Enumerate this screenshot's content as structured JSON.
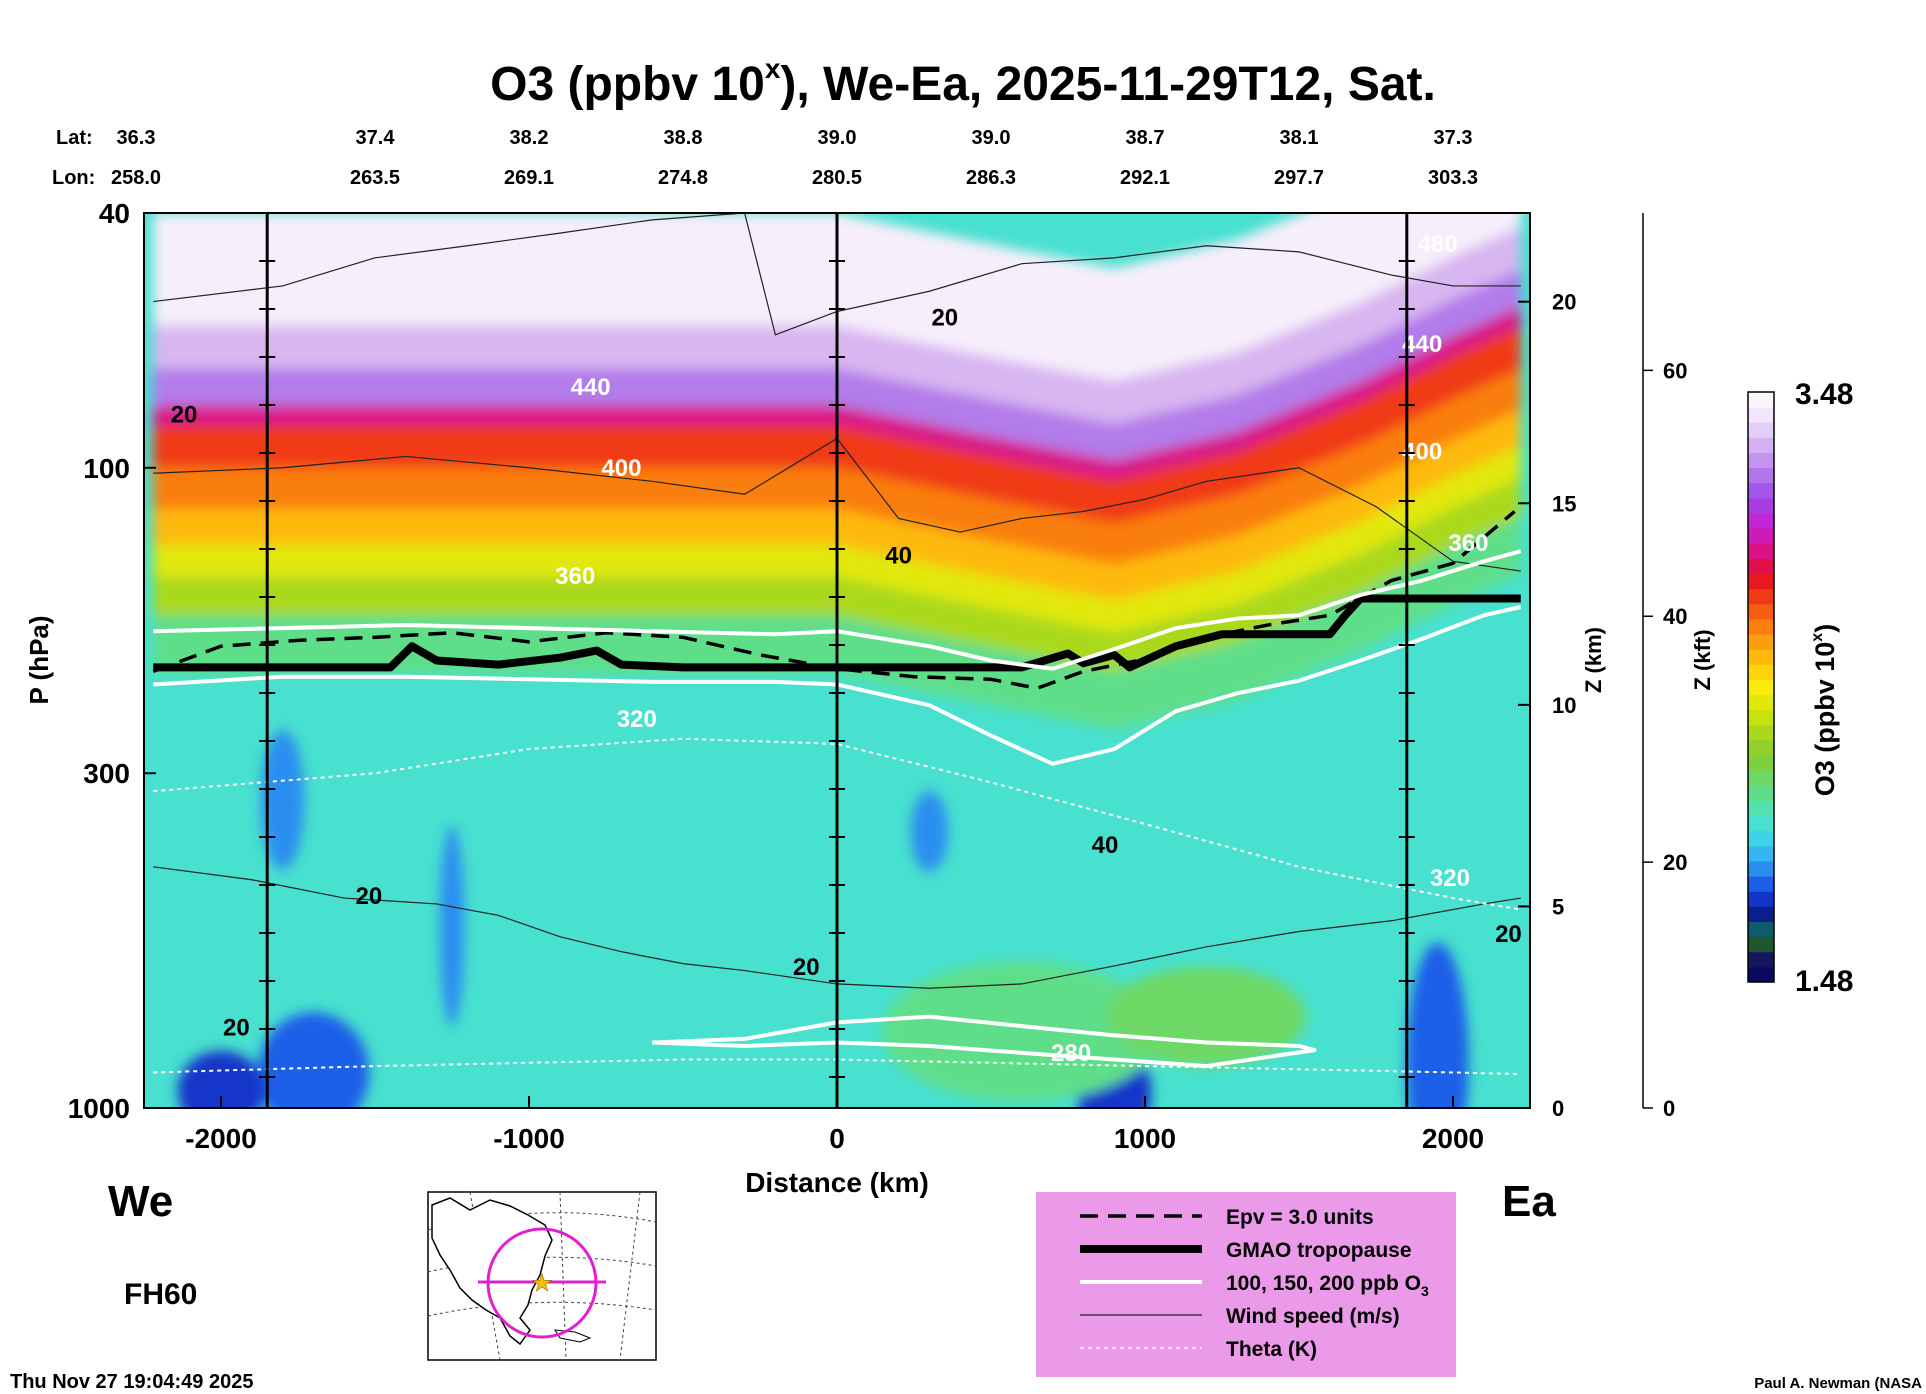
{
  "chart_data": {
    "type": "heatmap",
    "title": "O3 (ppbv 10",
    "title_sup": "x",
    "title_rest": "), We-Ea, 2025-11-29T12, Sat.",
    "xlabel": "Distance (km)",
    "ylabel": "P (hPa)",
    "z_km_label": "Z (km)",
    "z_kft_label": "Z (kft)",
    "xlim": [
      -2250,
      2250
    ],
    "ylim": [
      1000,
      40
    ],
    "x_ticks": [
      -2000,
      -1000,
      0,
      1000,
      2000
    ],
    "x_tick_labels": [
      "-2000",
      "-1000",
      "0",
      "1000",
      "2000"
    ],
    "p_ticks": [
      40,
      100,
      300,
      1000
    ],
    "p_tick_labels": [
      "40",
      "100",
      "300",
      "1000"
    ],
    "z_km_ticks": [
      0,
      5,
      10,
      15,
      20
    ],
    "z_km_tick_labels": [
      "0",
      "5",
      "10",
      "15",
      "20"
    ],
    "z_kft_ticks": [
      0,
      20,
      40,
      60
    ],
    "z_kft_tick_labels": [
      "0",
      "20",
      "40",
      "60"
    ],
    "lat_label": "Lat:",
    "lon_label": "Lon:",
    "stations_x": [
      -2000,
      -1500,
      -1000,
      -500,
      0,
      500,
      1000,
      1500,
      2000
    ],
    "lat_values": [
      "36.3",
      "37.4",
      "38.2",
      "38.8",
      "39.0",
      "39.0",
      "38.7",
      "38.1",
      "37.3"
    ],
    "lon_values": [
      "258.0",
      "263.5",
      "269.1",
      "274.8",
      "280.5",
      "286.3",
      "292.1",
      "297.7",
      "303.3"
    ],
    "vertical_lines_x": [
      -1850,
      0,
      1850
    ],
    "colorbar": {
      "label": "O3 (ppbv 10",
      "label_sup": "x",
      "label_end": ")",
      "min": 1.48,
      "max": 3.48,
      "min_label": "1.48",
      "max_label": "3.48",
      "colors": [
        "#08085e",
        "#16165a",
        "#1e5630",
        "#0c5c6c",
        "#0a1f8c",
        "#1336c9",
        "#1d5ee8",
        "#2a8ef0",
        "#35b6f2",
        "#3fd3e8",
        "#48e0cf",
        "#52e2ad",
        "#5fde8a",
        "#6ed866",
        "#7fd03e",
        "#92d02a",
        "#aad91c",
        "#c6e20f",
        "#e2e80a",
        "#fbeb0c",
        "#fdd40c",
        "#fdba0d",
        "#fc9c0f",
        "#fa7e10",
        "#f65d12",
        "#f03a16",
        "#e8181e",
        "#e0104c",
        "#d91387",
        "#cf1ab8",
        "#bf27d6",
        "#a83ce0",
        "#a257e6",
        "#b176ea",
        "#c294ee",
        "#d3b1f3",
        "#e3cef7",
        "#f1e6fb",
        "#faf4fd"
      ]
    },
    "series": [
      {
        "name": "Epv = 3.0 units",
        "style": "dashed",
        "x": [
          -2220,
          -2000,
          -1750,
          -1500,
          -1250,
          -1000,
          -750,
          -500,
          -250,
          0,
          250,
          500,
          650,
          800,
          1000,
          1200,
          1400,
          1600,
          1800,
          2000,
          2200
        ],
        "p": [
          208,
          190,
          186,
          184,
          181,
          187,
          181,
          184,
          196,
          206,
          212,
          214,
          221,
          208,
          199,
          184,
          176,
          170,
          150,
          141,
          117
        ]
      },
      {
        "name": "GMAO tropopause",
        "style": "thick",
        "x": [
          -2220,
          -1800,
          -1450,
          -1380,
          -1300,
          -1100,
          -900,
          -780,
          -700,
          -500,
          -300,
          0,
          300,
          600,
          750,
          800,
          900,
          950,
          1100,
          1250,
          1500,
          1600,
          1650,
          1700,
          1850,
          2000,
          2220
        ],
        "p": [
          205,
          205,
          205,
          190,
          200,
          203,
          198,
          193,
          203,
          205,
          205,
          205,
          205,
          205,
          195,
          202,
          196,
          205,
          190,
          182,
          182,
          182,
          170,
          160,
          160,
          160,
          160
        ]
      },
      {
        "name": "Wind speed 20 m/s (upper)",
        "style": "thin",
        "x": [
          -2220,
          -1800,
          -1500,
          -1200,
          -900,
          -600,
          -300,
          -200,
          0,
          300,
          600,
          900,
          1200,
          1500,
          1800,
          2000,
          2220
        ],
        "p": [
          55,
          52,
          47,
          45,
          43,
          41,
          40,
          62,
          57,
          53,
          48,
          47,
          45,
          46,
          50,
          52,
          52
        ]
      },
      {
        "name": "Wind speed 40 m/s",
        "style": "thin",
        "x": [
          -2220,
          -1800,
          -1400,
          -1000,
          -600,
          -300,
          0,
          200,
          400,
          600,
          800,
          1000,
          1200,
          1500,
          1750,
          2000,
          2220
        ],
        "p": [
          102,
          100,
          96,
          100,
          105,
          110,
          90,
          120,
          126,
          120,
          117,
          112,
          105,
          100,
          115,
          140,
          145
        ]
      },
      {
        "name": "Wind speed 20 m/s (lower)",
        "style": "thin",
        "x": [
          -2220,
          -1900,
          -1600,
          -1300,
          -1100,
          -900,
          -700,
          -500,
          -300,
          0,
          300,
          600,
          900,
          1200,
          1500,
          1800,
          2100,
          2220
        ],
        "p": [
          420,
          440,
          470,
          480,
          500,
          540,
          570,
          595,
          610,
          640,
          650,
          640,
          600,
          560,
          530,
          510,
          480,
          470
        ]
      },
      {
        "name": "O3 200 ppb contour",
        "style": "white",
        "x": [
          -2220,
          -1800,
          -1400,
          -1000,
          -600,
          -200,
          0,
          300,
          500,
          700,
          900,
          1100,
          1300,
          1500,
          1700,
          1900,
          2100,
          2220
        ],
        "p": [
          180,
          178,
          176,
          178,
          180,
          182,
          180,
          190,
          200,
          206,
          192,
          178,
          172,
          170,
          158,
          150,
          140,
          135
        ]
      },
      {
        "name": "O3 150 ppb contour",
        "style": "white",
        "x": [
          -2220,
          -1800,
          -1400,
          -1000,
          -600,
          -200,
          0,
          300,
          500,
          700,
          900,
          1100,
          1300,
          1500,
          1700,
          1900,
          2100,
          2220
        ],
        "p": [
          218,
          212,
          212,
          214,
          216,
          216,
          218,
          235,
          262,
          290,
          275,
          240,
          225,
          215,
          200,
          185,
          170,
          165
        ]
      },
      {
        "name": "O3 100 ppb contour (lower)",
        "style": "white",
        "x": [
          -600,
          -300,
          0,
          300,
          600,
          900,
          1200,
          1500,
          1550,
          1200,
          900,
          600,
          300,
          0,
          -300,
          -600
        ],
        "p": [
          790,
          780,
          735,
          720,
          745,
          770,
          790,
          800,
          812,
          860,
          840,
          820,
          800,
          790,
          800,
          790
        ]
      },
      {
        "name": "Theta 320 K",
        "style": "dotted",
        "x": [
          -2220,
          -1500,
          -1000,
          -500,
          0,
          500,
          1000,
          1500,
          2000,
          2220
        ],
        "p": [
          320,
          300,
          275,
          265,
          270,
          310,
          360,
          420,
          470,
          490
        ]
      },
      {
        "name": "Theta 280 K",
        "style": "dotted",
        "x": [
          -2220,
          -1500,
          -1000,
          -500,
          0,
          500,
          1000,
          1500,
          2000,
          2220
        ],
        "p": [
          880,
          860,
          850,
          840,
          840,
          850,
          860,
          870,
          880,
          885
        ]
      }
    ],
    "contour_labels": [
      {
        "text": "440",
        "x": -800,
        "p": 77
      },
      {
        "text": "400",
        "x": -700,
        "p": 103
      },
      {
        "text": "360",
        "x": -850,
        "p": 152
      },
      {
        "text": "320",
        "x": -650,
        "p": 254
      },
      {
        "text": "280",
        "x": 760,
        "p": 845
      },
      {
        "text": "20",
        "x": -2120,
        "p": 85
      },
      {
        "text": "40",
        "x": 200,
        "p": 141
      },
      {
        "text": "20",
        "x": 350,
        "p": 60
      },
      {
        "text": "40",
        "x": 870,
        "p": 400
      },
      {
        "text": "20",
        "x": -1520,
        "p": 480
      },
      {
        "text": "20",
        "x": -100,
        "p": 620
      },
      {
        "text": "20",
        "x": -1950,
        "p": 770
      },
      {
        "text": "20",
        "x": 2180,
        "p": 550
      },
      {
        "text": "440",
        "x": 1900,
        "p": 66
      },
      {
        "text": "400",
        "x": 1900,
        "p": 97
      },
      {
        "text": "360",
        "x": 2050,
        "p": 135
      },
      {
        "text": "320",
        "x": 1990,
        "p": 450
      },
      {
        "text": "480",
        "x": 1950,
        "p": 46
      }
    ],
    "legend": [
      {
        "label": "Epv = 3.0 units",
        "style": "dashed"
      },
      {
        "label": "GMAO tropopause",
        "style": "thick"
      },
      {
        "label": "100, 150, 200 ppb O",
        "sub": "3",
        "style": "white"
      },
      {
        "label": "Wind speed (m/s)",
        "style": "thin"
      },
      {
        "label": "Theta (K)",
        "style": "dotted"
      }
    ]
  },
  "labels": {
    "west": "We",
    "east": "Ea",
    "forecast_hour": "FH60",
    "timestamp": "Thu Nov 27 19:04:49 2025",
    "credit": "Paul A. Newman (NASA"
  },
  "colors": {
    "legend_bg": "#ea9ae8",
    "map_circle": "#e020d0",
    "map_star": "#f0c000"
  },
  "icons": {
    "map": "north-america-locator-map"
  }
}
